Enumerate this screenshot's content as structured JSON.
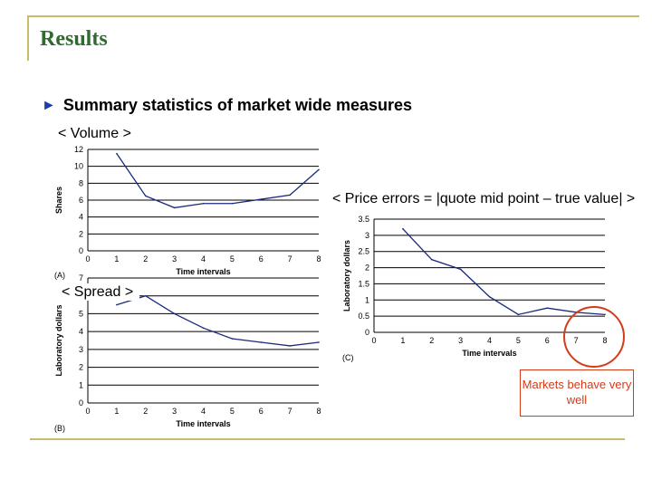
{
  "slide": {
    "title": "Results",
    "bullet": "Summary statistics of market wide measures",
    "bullet_icon": "triangle-bullet-icon",
    "accent_color": "#2f6b2f",
    "frame_color": "#c8bd6a"
  },
  "annotations": {
    "volume": "< Volume >",
    "price_errors": "< Price errors = |quote mid point – true value| >",
    "spread": "< Spread >",
    "note": "Markets behave very well",
    "note_color": "#d43b18"
  },
  "chart_data": [
    {
      "type": "line",
      "panel": "(A)",
      "xlabel": "Time intervals",
      "ylabel": "Shares",
      "x": [
        1,
        2,
        3,
        4,
        5,
        6,
        7,
        8
      ],
      "values": [
        11.5,
        6.5,
        5.1,
        5.6,
        5.6,
        6.1,
        6.6,
        9.6
      ],
      "xlim": [
        0,
        8
      ],
      "ylim": [
        0,
        12
      ],
      "xticks": [
        "0",
        "1",
        "2",
        "3",
        "4",
        "5",
        "6",
        "7",
        "8"
      ],
      "yticks": [
        "0",
        "2",
        "4",
        "6",
        "8",
        "10",
        "12"
      ],
      "grid": true
    },
    {
      "type": "line",
      "panel": "(B)",
      "xlabel": "Time intervals",
      "ylabel": "Laboratory dollars",
      "x": [
        1,
        2,
        3,
        4,
        5,
        6,
        7,
        8
      ],
      "values": [
        5.5,
        6.0,
        5.0,
        4.2,
        3.6,
        3.4,
        3.2,
        3.4
      ],
      "xlim": [
        0,
        8
      ],
      "ylim": [
        0,
        7
      ],
      "xticks": [
        "0",
        "1",
        "2",
        "3",
        "4",
        "5",
        "6",
        "7",
        "8"
      ],
      "yticks": [
        "0",
        "1",
        "2",
        "3",
        "4",
        "5",
        "6",
        "7"
      ],
      "grid": true
    },
    {
      "type": "line",
      "panel": "(C)",
      "xlabel": "Time intervals",
      "ylabel": "Laboratory dollars",
      "x": [
        1,
        2,
        3,
        4,
        5,
        6,
        7,
        8
      ],
      "values": [
        3.2,
        2.25,
        1.95,
        1.1,
        0.55,
        0.75,
        0.62,
        0.55
      ],
      "xlim": [
        0,
        8
      ],
      "ylim": [
        0,
        3.5
      ],
      "xticks": [
        "0",
        "1",
        "2",
        "3",
        "4",
        "5",
        "6",
        "7",
        "8"
      ],
      "yticks": [
        "0",
        "0.5",
        "1",
        "1.5",
        "2",
        "2.5",
        "3",
        "3.5"
      ],
      "grid": true
    }
  ]
}
